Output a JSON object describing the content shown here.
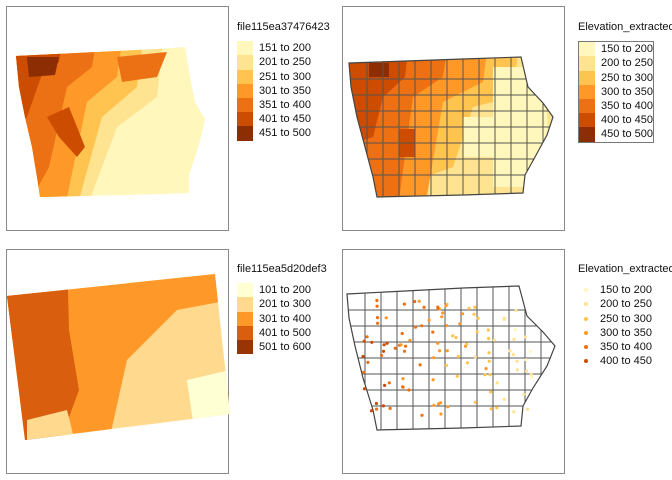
{
  "palette_note": "YlOrBr sequential",
  "panels": [
    {
      "legend_title": "file115ea37476423",
      "type": "raster",
      "items": [
        {
          "label": "151 to 200",
          "color": "#fff7bc"
        },
        {
          "label": "201 to 250",
          "color": "#fee391"
        },
        {
          "label": "251 to 300",
          "color": "#fec44f"
        },
        {
          "label": "301 to 350",
          "color": "#fe9929"
        },
        {
          "label": "351 to 400",
          "color": "#ec7014"
        },
        {
          "label": "401 to 450",
          "color": "#cc4c02"
        },
        {
          "label": "451 to 500",
          "color": "#8c2d04"
        }
      ]
    },
    {
      "legend_title": "Elevation_extracted",
      "type": "choropleth",
      "items": [
        {
          "label": "150 to 200",
          "color": "#fff7bc"
        },
        {
          "label": "200 to 250",
          "color": "#fee391"
        },
        {
          "label": "250 to 300",
          "color": "#fec44f"
        },
        {
          "label": "300 to 350",
          "color": "#fe9929"
        },
        {
          "label": "350 to 400",
          "color": "#ec7014"
        },
        {
          "label": "400 to 450",
          "color": "#cc4c02"
        },
        {
          "label": "450 to 500",
          "color": "#8c2d04"
        }
      ]
    },
    {
      "legend_title": "file115ea5d20def3",
      "type": "raster",
      "items": [
        {
          "label": "101 to 200",
          "color": "#ffffd4"
        },
        {
          "label": "201 to 300",
          "color": "#fed98e"
        },
        {
          "label": "301 to 400",
          "color": "#fe9929"
        },
        {
          "label": "401 to 500",
          "color": "#d95f0e"
        },
        {
          "label": "501 to 600",
          "color": "#993404"
        }
      ]
    },
    {
      "legend_title": "Elevation_extracted",
      "type": "points",
      "items": [
        {
          "label": "150 to 200",
          "color": "#fff7bc"
        },
        {
          "label": "200 to 250",
          "color": "#fee391"
        },
        {
          "label": "250 to 300",
          "color": "#fec44f"
        },
        {
          "label": "300 to 350",
          "color": "#fe9929"
        },
        {
          "label": "350 to 400",
          "color": "#ec7014"
        },
        {
          "label": "400 to 450",
          "color": "#cc4c02"
        }
      ]
    }
  ]
}
